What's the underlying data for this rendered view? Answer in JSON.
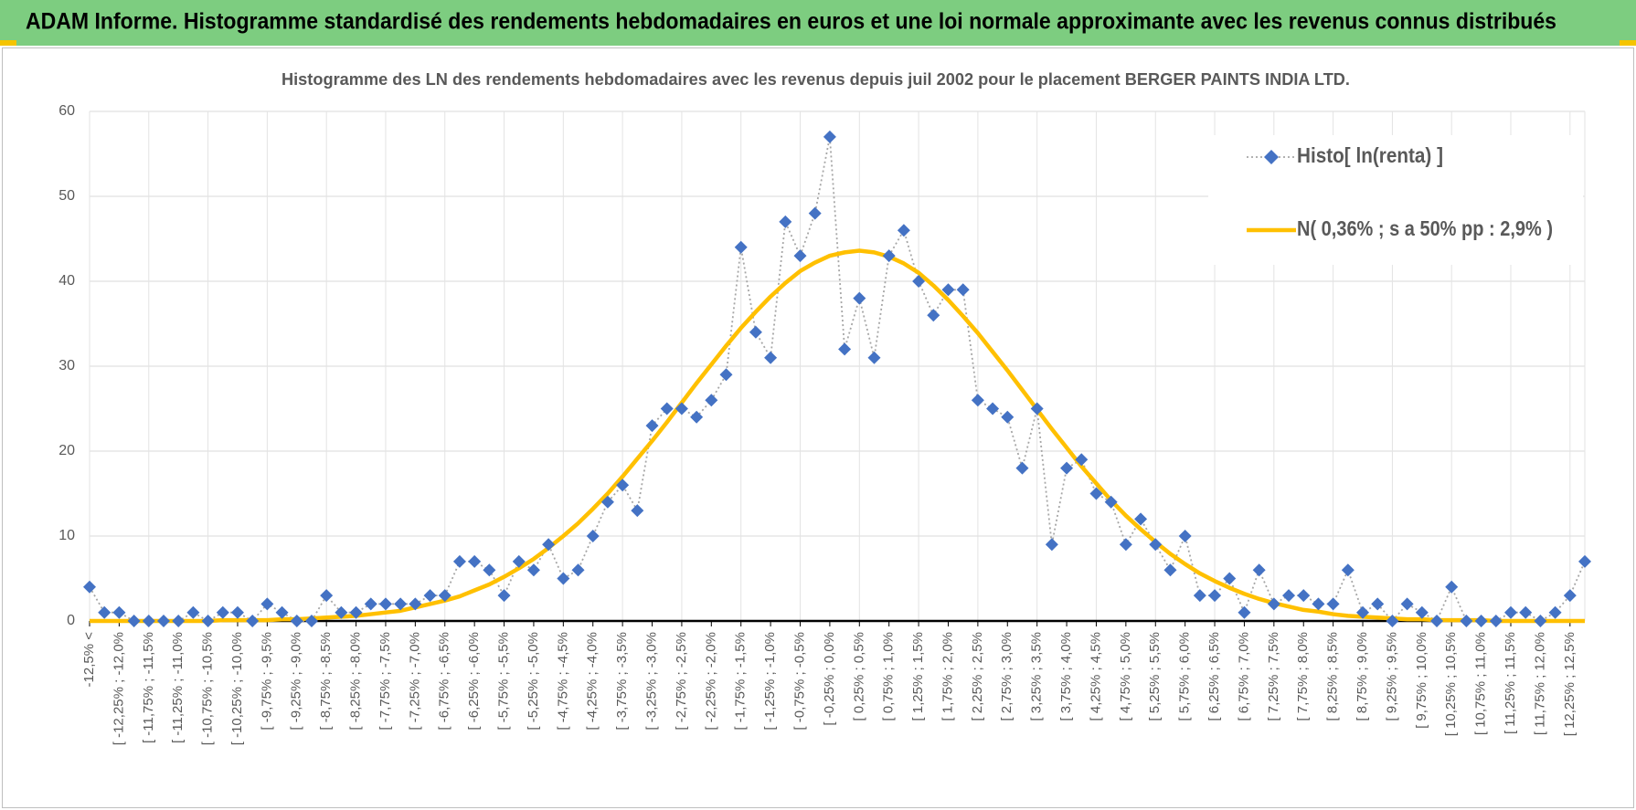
{
  "chart_data": {
    "type": "line",
    "header": "ADAM Informe. Histogramme standardisé des rendements hebdomadaires en euros et une loi normale approximante avec les revenus connus distribués",
    "title": "Histogramme  des LN des rendements hebdomadaires avec les revenus depuis juil 2002 pour le placement BERGER PAINTS INDIA LTD.",
    "categories": [
      "-12,5% <",
      null,
      "[ -12,25% ; -12,0%",
      null,
      "[ -11,75% ; -11,5%",
      null,
      "[ -11,25% ; -11,0%",
      null,
      "[ -10,75% ; -10,5%",
      null,
      "[ -10,25% ; -10,0%",
      null,
      "[ -9,75% ; -9,5%",
      null,
      "[ -9,25% ; -9,0%",
      null,
      "[ -8,75% ; -8,5%",
      null,
      "[ -8,25% ; -8,0%",
      null,
      "[ -7,75% ; -7,5%",
      null,
      "[ -7,25% ; -7,0%",
      null,
      "[ -6,75% ; -6,5%",
      null,
      "[ -6,25% ; -6,0%",
      null,
      "[ -5,75% ; -5,5%",
      null,
      "[ -5,25% ; -5,0%",
      null,
      "[ -4,75% ; -4,5%",
      null,
      "[ -4,25% ; -4,0%",
      null,
      "[ -3,75% ; -3,5%",
      null,
      "[ -3,25% ; -3,0%",
      null,
      "[ -2,75% ; -2,5%",
      null,
      "[ -2,25% ; -2,0%",
      null,
      "[ -1,75% ; -1,5%",
      null,
      "[ -1,25% ; -1,0%",
      null,
      "[ -0,75% ; -0,5%",
      null,
      "[ -0,25% ; 0,0%",
      null,
      "[ 0,25% ; 0,5%",
      null,
      "[ 0,75% ; 1,0%",
      null,
      "[ 1,25% ; 1,5%",
      null,
      "[ 1,75% ; 2,0%",
      null,
      "[ 2,25% ; 2,5%",
      null,
      "[ 2,75% ; 3,0%",
      null,
      "[ 3,25% ; 3,5%",
      null,
      "[ 3,75% ; 4,0%",
      null,
      "[ 4,25% ; 4,5%",
      null,
      "[ 4,75% ; 5,0%",
      null,
      "[ 5,25% ; 5,5%",
      null,
      "[ 5,75% ; 6,0%",
      null,
      "[ 6,25% ; 6,5%",
      null,
      "[ 6,75% ; 7,0%",
      null,
      "[ 7,25% ; 7,5%",
      null,
      "[ 7,75% ; 8,0%",
      null,
      "[ 8,25% ; 8,5%",
      null,
      "[ 8,75% ; 9,0%",
      null,
      "[ 9,25% ; 9,5%",
      null,
      "[ 9,75% ; 10,0%",
      null,
      "[ 10,25% ; 10,5%",
      null,
      "[ 10,75% ; 11,0%",
      null,
      "[ 11,25% ; 11,5%",
      null,
      "[ 11,75% ; 12,0%",
      null,
      "[ 12,25% ; 12,5%",
      null
    ],
    "series": [
      {
        "name": "Histo[ ln(renta) ]",
        "color": "#4472c4",
        "marker": "diamond",
        "values": [
          4,
          1,
          1,
          0,
          0,
          0,
          0,
          1,
          0,
          1,
          1,
          0,
          2,
          1,
          0,
          0,
          3,
          1,
          1,
          2,
          2,
          2,
          2,
          3,
          3,
          7,
          7,
          6,
          3,
          7,
          6,
          9,
          5,
          6,
          10,
          14,
          16,
          13,
          23,
          25,
          25,
          24,
          26,
          29,
          44,
          34,
          31,
          47,
          43,
          48,
          57,
          32,
          38,
          31,
          43,
          46,
          40,
          36,
          39,
          39,
          26,
          25,
          24,
          18,
          25,
          9,
          18,
          19,
          15,
          14,
          9,
          12,
          9,
          6,
          10,
          3,
          3,
          5,
          1,
          6,
          2,
          3,
          3,
          2,
          2,
          6,
          1,
          2,
          0,
          2,
          1,
          0,
          4,
          0,
          0,
          0,
          1,
          1,
          0,
          1,
          3,
          7
        ]
      },
      {
        "name": "N( 0,36% ; s a 50% pp : 2,9% )",
        "color": "#ffc000",
        "values": [
          0,
          0,
          0,
          0,
          0,
          0,
          0,
          0,
          0,
          0.1,
          0.1,
          0.1,
          0.1,
          0.2,
          0.2,
          0.3,
          0.4,
          0.5,
          0.6,
          0.8,
          1.0,
          1.2,
          1.6,
          2.0,
          2.4,
          2.9,
          3.6,
          4.3,
          5.2,
          6.2,
          7.3,
          8.6,
          10.0,
          11.5,
          13.2,
          15.0,
          17.0,
          19.1,
          21.2,
          23.4,
          25.7,
          28.0,
          30.2,
          32.4,
          34.5,
          36.4,
          38.2,
          39.8,
          41.2,
          42.2,
          43.0,
          43.4,
          43.6,
          43.4,
          42.9,
          42.1,
          41.0,
          39.5,
          37.8,
          35.9,
          33.9,
          31.7,
          29.5,
          27.2,
          24.9,
          22.6,
          20.4,
          18.2,
          16.2,
          14.2,
          12.4,
          10.8,
          9.3,
          7.9,
          6.7,
          5.6,
          4.7,
          3.9,
          3.2,
          2.6,
          2.1,
          1.7,
          1.3,
          1.1,
          0.8,
          0.6,
          0.5,
          0.4,
          0.3,
          0.2,
          0.2,
          0.1,
          0.1,
          0.1,
          0.1,
          0,
          0,
          0,
          0,
          0,
          0,
          0
        ]
      }
    ],
    "ylim": [
      0,
      60
    ],
    "yticks": [
      0,
      10,
      20,
      30,
      40,
      50,
      60
    ],
    "grid": true,
    "legend": "upper right"
  }
}
